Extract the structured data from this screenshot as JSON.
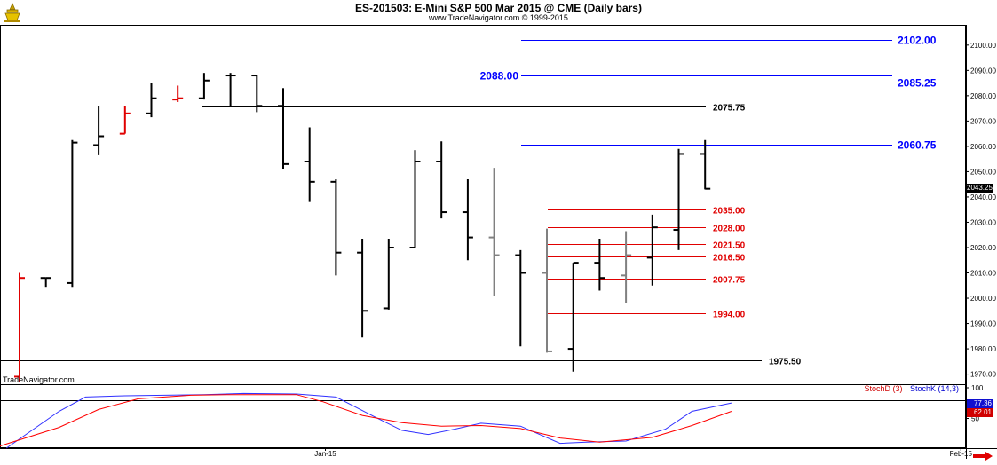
{
  "header": {
    "title": "ES-201503:  E-Mini S&P 500 Mar 2015 @ CME  (Daily bars)",
    "copyright": "www.TradeNavigator.com © 1999-2015",
    "watermark": "TradeNavigator.com"
  },
  "colors": {
    "up_bar": "#000000",
    "down_bar": "#e00000",
    "gray_bar": "#808080",
    "resistance_blue": "#0000ff",
    "support_red": "#e00000",
    "black_level": "#000000",
    "stoch_d": "#ff0000",
    "stoch_k": "#3030ff"
  },
  "chart_data": [
    {
      "type": "ohlc",
      "title": "ES-201503:  E-Mini S&P 500 Mar 2015 @ CME  (Daily bars)",
      "ylim": [
        1966,
        2108
      ],
      "y_ticks": [
        1970,
        1980,
        1990,
        2000,
        2010,
        2020,
        2030,
        2040,
        2050,
        2060,
        2070,
        2080,
        2090,
        2100
      ],
      "y_tick_labels": [
        "1970.00",
        "1980.00",
        "1990.00",
        "2000.00",
        "2010.00",
        "2020.00",
        "2030.00",
        "2040.00",
        "2050.00",
        "2060.00",
        "2070.00",
        "2080.00",
        "2090.00",
        "2100.00"
      ],
      "x_labels": [
        {
          "label": "Jan-15",
          "bar": 11.6
        },
        {
          "label": "Feb-15",
          "bar": 35.7
        }
      ],
      "grid": false,
      "bars": [
        {
          "open": 1969,
          "high": 2010,
          "low": 1967,
          "close": 2008,
          "color": "red"
        },
        {
          "open": 2008,
          "high": 2008,
          "low": 2004.5,
          "close": 2008,
          "color": "black"
        },
        {
          "open": 2006,
          "high": 2062.5,
          "low": 2004.5,
          "close": 2061.5,
          "color": "black"
        },
        {
          "open": 2060.5,
          "high": 2076,
          "low": 2056.5,
          "close": 2064,
          "color": "black"
        },
        {
          "open": 2065,
          "high": 2076,
          "low": 2065,
          "close": 2073,
          "color": "red"
        },
        {
          "open": 2073,
          "high": 2085,
          "low": 2071.5,
          "close": 2079,
          "color": "black"
        },
        {
          "open": 2078.5,
          "high": 2084,
          "low": 2077.5,
          "close": 2079,
          "color": "red"
        },
        {
          "open": 2079,
          "high": 2089,
          "low": 2078.5,
          "close": 2086,
          "color": "black"
        },
        {
          "open": 2088,
          "high": 2089,
          "low": 2076,
          "close": 2088,
          "color": "black"
        },
        {
          "open": 2088,
          "high": 2088,
          "low": 2073.5,
          "close": 2076,
          "color": "black"
        },
        {
          "open": 2076,
          "high": 2083,
          "low": 2051,
          "close": 2053,
          "color": "black"
        },
        {
          "open": 2054,
          "high": 2067.5,
          "low": 2038,
          "close": 2046,
          "color": "black"
        },
        {
          "open": 2046,
          "high": 2047,
          "low": 2009,
          "close": 2018,
          "color": "black"
        },
        {
          "open": 2018,
          "high": 2023.5,
          "low": 1984.5,
          "close": 1995,
          "color": "black"
        },
        {
          "open": 1996,
          "high": 2023.5,
          "low": 1995.5,
          "close": 2020,
          "color": "black"
        },
        {
          "open": 2020,
          "high": 2058.5,
          "low": 2020,
          "close": 2054,
          "color": "black"
        },
        {
          "open": 2054,
          "high": 2062,
          "low": 2031.5,
          "close": 2034,
          "color": "black"
        },
        {
          "open": 2034,
          "high": 2047,
          "low": 2015,
          "close": 2024,
          "color": "black"
        },
        {
          "open": 2024,
          "high": 2051.5,
          "low": 2001,
          "close": 2017,
          "color": "gray"
        },
        {
          "open": 2017,
          "high": 2019,
          "low": 1981,
          "close": 2010,
          "color": "black"
        },
        {
          "open": 2010,
          "high": 2027.5,
          "low": 1978.5,
          "close": 1979,
          "color": "gray"
        },
        {
          "open": 1980,
          "high": 2014,
          "low": 1971,
          "close": 2014,
          "color": "black"
        },
        {
          "open": 2014,
          "high": 2023.5,
          "low": 2003,
          "close": 2008,
          "color": "black"
        },
        {
          "open": 2009,
          "high": 2026.5,
          "low": 1998,
          "close": 2017,
          "color": "gray"
        },
        {
          "open": 2016,
          "high": 2033,
          "low": 2005,
          "close": 2028,
          "color": "black"
        },
        {
          "open": 2027,
          "high": 2059,
          "low": 2019,
          "close": 2057,
          "color": "black"
        },
        {
          "open": 2057,
          "high": 2062.5,
          "low": 2043,
          "close": 2043.25,
          "color": "black"
        }
      ],
      "levels": [
        {
          "label": "2102.00",
          "value": 2102.0,
          "color": "blue",
          "label_side": "right"
        },
        {
          "label": "2088.00",
          "value": 2088.0,
          "color": "blue",
          "label_side": "left"
        },
        {
          "label": "2085.25",
          "value": 2085.25,
          "color": "blue",
          "label_side": "right"
        },
        {
          "label": "2075.75",
          "value": 2075.75,
          "color": "black",
          "label_side": "right"
        },
        {
          "label": "2060.75",
          "value": 2060.75,
          "color": "blue",
          "label_side": "right"
        },
        {
          "label": "2035.00",
          "value": 2035.0,
          "color": "red",
          "label_side": "right"
        },
        {
          "label": "2028.00",
          "value": 2028.0,
          "color": "red",
          "label_side": "right"
        },
        {
          "label": "2021.50",
          "value": 2021.5,
          "color": "red",
          "label_side": "right"
        },
        {
          "label": "2016.50",
          "value": 2016.5,
          "color": "red",
          "label_side": "right"
        },
        {
          "label": "2007.75",
          "value": 2007.75,
          "color": "red",
          "label_side": "right"
        },
        {
          "label": "1994.00",
          "value": 1994.0,
          "color": "red",
          "label_side": "right"
        },
        {
          "label": "1975.50",
          "value": 1975.5,
          "color": "black",
          "label_side": "right"
        }
      ],
      "last_price": "2043.25"
    },
    {
      "type": "line",
      "ylim": [
        0,
        100
      ],
      "y_ticks": [
        50,
        100
      ],
      "y_tick_labels": [
        "50",
        "100"
      ],
      "reference_lines": [
        20,
        80
      ],
      "legend": [
        "StochD (3)",
        "StochK (14,3)"
      ],
      "legend_placement": "top-right",
      "series": [
        {
          "name": "StochK (14,3)",
          "color": "blue",
          "x": [
            -0.5,
            1.5,
            2.5,
            4,
            5.5,
            7,
            8.5,
            10.5,
            12,
            13.5,
            14.5,
            15.5,
            16.5,
            17.5,
            19,
            20.5,
            21.5,
            23,
            24.5,
            25.5,
            27
          ],
          "values": [
            0,
            62,
            86,
            88,
            89,
            90,
            92,
            91,
            86,
            52,
            30,
            23,
            32,
            42,
            37,
            8,
            10,
            12,
            32,
            62,
            76
          ]
        },
        {
          "name": "StochD (3)",
          "color": "red",
          "x": [
            -1,
            1.5,
            3,
            4.5,
            6.5,
            8,
            10.5,
            11.5,
            13,
            14.5,
            16,
            17.5,
            19,
            20.5,
            22,
            24,
            25.5,
            27
          ],
          "values": [
            0,
            35,
            65,
            83,
            89,
            90,
            90,
            78,
            55,
            43,
            37,
            38,
            33,
            17,
            10,
            18,
            38,
            62
          ]
        }
      ],
      "current": {
        "stoch_k": "77.36",
        "stoch_d": "62.01"
      }
    }
  ]
}
